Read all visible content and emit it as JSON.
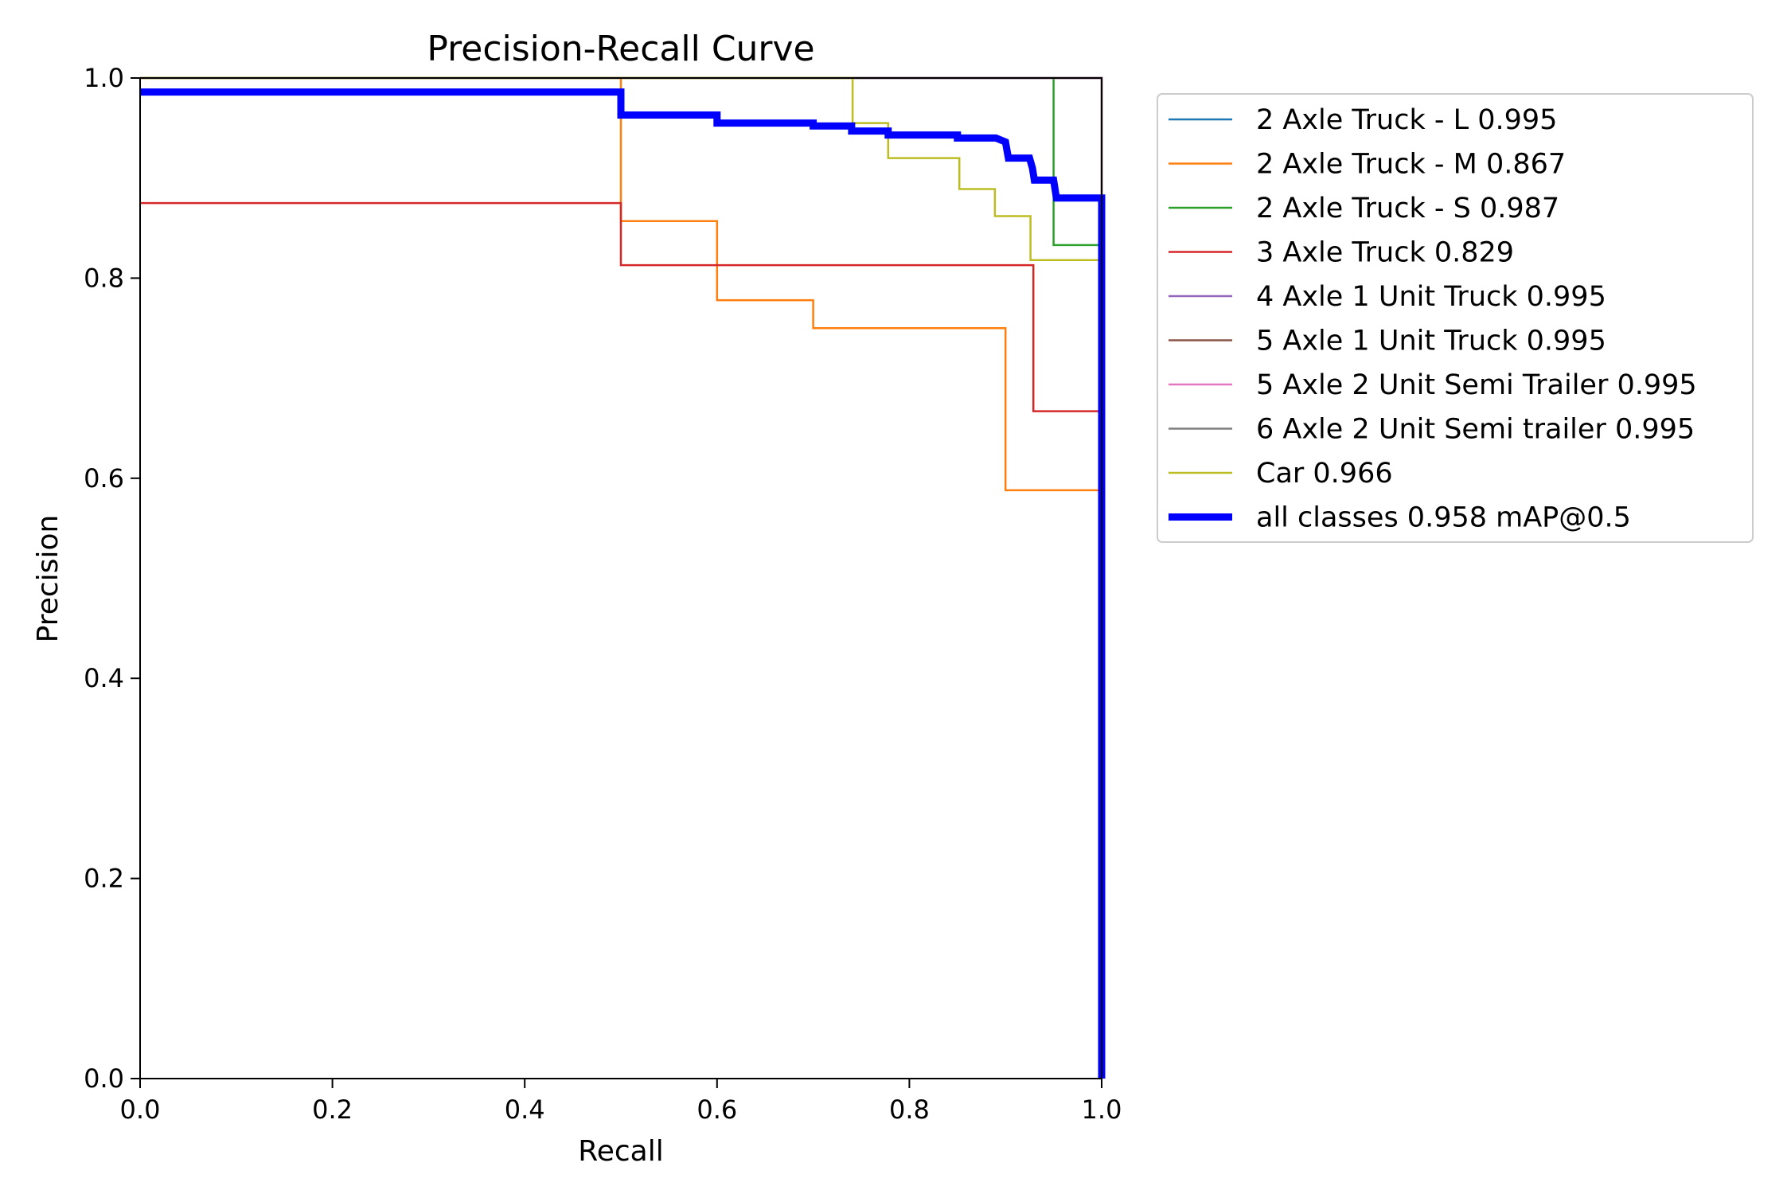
{
  "chart_data": {
    "type": "line",
    "title": "Precision-Recall Curve",
    "xlabel": "Recall",
    "ylabel": "Precision",
    "xlim": [
      0,
      1
    ],
    "ylim": [
      0,
      1
    ],
    "xticks": [
      "0.0",
      "0.2",
      "0.4",
      "0.6",
      "0.8",
      "1.0"
    ],
    "yticks": [
      "0.0",
      "0.2",
      "0.4",
      "0.6",
      "0.8",
      "1.0"
    ],
    "grid": false,
    "legend_position": "outside-upper-right",
    "series": [
      {
        "name": "2 Axle Truck - L 0.995",
        "color": "#1f77b4",
        "line_width": "thin",
        "points": [
          [
            0,
            1.0
          ],
          [
            1.0,
            1.0
          ],
          [
            1.0,
            0.0
          ]
        ]
      },
      {
        "name": "2 Axle Truck - M 0.867",
        "color": "#ff7f0e",
        "line_width": "thin",
        "points": [
          [
            0,
            1.0
          ],
          [
            0.5,
            1.0
          ],
          [
            0.5,
            0.857
          ],
          [
            0.6,
            0.857
          ],
          [
            0.6,
            0.778
          ],
          [
            0.7,
            0.778
          ],
          [
            0.7,
            0.75
          ],
          [
            0.9,
            0.75
          ],
          [
            0.9,
            0.588
          ],
          [
            1.0,
            0.588
          ],
          [
            1.0,
            0.0
          ]
        ]
      },
      {
        "name": "2 Axle Truck - S 0.987",
        "color": "#2ca02c",
        "line_width": "thin",
        "points": [
          [
            0,
            1.0
          ],
          [
            0.95,
            1.0
          ],
          [
            0.95,
            0.833
          ],
          [
            1.0,
            0.833
          ],
          [
            1.0,
            0.0
          ]
        ]
      },
      {
        "name": "3 Axle Truck 0.829",
        "color": "#d62728",
        "line_width": "thin",
        "points": [
          [
            0,
            0.875
          ],
          [
            0.5,
            0.875
          ],
          [
            0.5,
            0.813
          ],
          [
            0.929,
            0.813
          ],
          [
            0.929,
            0.667
          ],
          [
            1.0,
            0.667
          ],
          [
            1.0,
            0.0
          ]
        ]
      },
      {
        "name": "4 Axle 1 Unit Truck 0.995",
        "color": "#9467bd",
        "line_width": "thin",
        "points": [
          [
            0,
            1.0
          ],
          [
            1.0,
            1.0
          ],
          [
            1.0,
            0.0
          ]
        ]
      },
      {
        "name": "5 Axle 1 Unit Truck 0.995",
        "color": "#8c564b",
        "line_width": "thin",
        "points": [
          [
            0,
            1.0
          ],
          [
            1.0,
            1.0
          ],
          [
            1.0,
            0.0
          ]
        ]
      },
      {
        "name": "5 Axle 2 Unit Semi Trailer 0.995",
        "color": "#e377c2",
        "line_width": "thin",
        "points": [
          [
            0,
            1.0
          ],
          [
            1.0,
            1.0
          ],
          [
            1.0,
            0.0
          ]
        ]
      },
      {
        "name": "6 Axle 2 Unit Semi trailer 0.995",
        "color": "#7f7f7f",
        "line_width": "thin",
        "points": [
          [
            0,
            1.0
          ],
          [
            1.0,
            1.0
          ],
          [
            1.0,
            0.0
          ]
        ]
      },
      {
        "name": "Car 0.966",
        "color": "#bcbd22",
        "line_width": "thin",
        "points": [
          [
            0,
            1.0
          ],
          [
            0.741,
            1.0
          ],
          [
            0.741,
            0.955
          ],
          [
            0.778,
            0.955
          ],
          [
            0.778,
            0.92
          ],
          [
            0.852,
            0.92
          ],
          [
            0.852,
            0.889
          ],
          [
            0.889,
            0.889
          ],
          [
            0.889,
            0.862
          ],
          [
            0.926,
            0.862
          ],
          [
            0.926,
            0.818
          ],
          [
            1.0,
            0.818
          ],
          [
            1.0,
            0.0
          ]
        ]
      },
      {
        "name": "all classes 0.958 mAP@0.5",
        "color": "#0000ff",
        "line_width": "thick",
        "points": [
          [
            0,
            0.986
          ],
          [
            0.5,
            0.986
          ],
          [
            0.5,
            0.963
          ],
          [
            0.6,
            0.963
          ],
          [
            0.6,
            0.955
          ],
          [
            0.7,
            0.955
          ],
          [
            0.7,
            0.952
          ],
          [
            0.74,
            0.952
          ],
          [
            0.74,
            0.947
          ],
          [
            0.778,
            0.947
          ],
          [
            0.778,
            0.943
          ],
          [
            0.85,
            0.943
          ],
          [
            0.85,
            0.94
          ],
          [
            0.89,
            0.94
          ],
          [
            0.9,
            0.936
          ],
          [
            0.903,
            0.92
          ],
          [
            0.925,
            0.92
          ],
          [
            0.928,
            0.91
          ],
          [
            0.93,
            0.898
          ],
          [
            0.95,
            0.898
          ],
          [
            0.953,
            0.88
          ],
          [
            1.0,
            0.88
          ],
          [
            1.0,
            0.0
          ]
        ]
      }
    ]
  }
}
